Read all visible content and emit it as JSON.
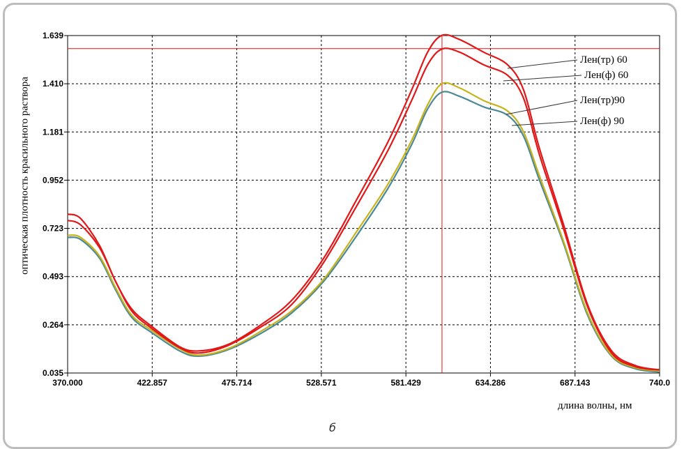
{
  "chart_data": {
    "type": "line",
    "title": "",
    "xlabel": "длина волны, нм",
    "ylabel": "оптическая плотность красильного раствора",
    "xlim": [
      370.0,
      740.0
    ],
    "ylim": [
      0.035,
      1.639
    ],
    "x_ticks": [
      "370.000",
      "422.857",
      "475.714",
      "528.571",
      "581.429",
      "634.286",
      "687.143",
      "740.0"
    ],
    "y_ticks": [
      "0.035",
      "0.264",
      "0.493",
      "0.723",
      "0.952",
      "1.181",
      "1.410",
      "1.639"
    ],
    "grid": true,
    "grid_style": "dashed",
    "cursor": {
      "x": 604.0,
      "y": 1.577,
      "color": "#e01010"
    },
    "x": [
      370,
      378,
      390,
      400,
      410,
      422,
      440,
      452,
      470,
      490,
      510,
      530,
      550,
      570,
      585,
      595,
      604,
      615,
      630,
      645,
      655,
      665,
      680,
      695,
      710,
      725,
      740
    ],
    "series": [
      {
        "name": "Лен(тр) 60",
        "color": "#e01818",
        "values": [
          0.79,
          0.77,
          0.64,
          0.47,
          0.34,
          0.26,
          0.16,
          0.14,
          0.17,
          0.26,
          0.38,
          0.58,
          0.85,
          1.13,
          1.38,
          1.56,
          1.64,
          1.62,
          1.56,
          1.5,
          1.38,
          1.1,
          0.74,
          0.36,
          0.14,
          0.07,
          0.05
        ]
      },
      {
        "name": "Лен(ф) 60",
        "color": "#e01818",
        "values": [
          0.76,
          0.74,
          0.63,
          0.47,
          0.33,
          0.25,
          0.155,
          0.13,
          0.165,
          0.25,
          0.36,
          0.56,
          0.82,
          1.09,
          1.33,
          1.5,
          1.575,
          1.56,
          1.5,
          1.45,
          1.34,
          1.07,
          0.72,
          0.35,
          0.13,
          0.065,
          0.05
        ]
      },
      {
        "name": "Лен(тр)90",
        "color": "#c8b21c",
        "values": [
          0.69,
          0.68,
          0.59,
          0.44,
          0.31,
          0.24,
          0.15,
          0.12,
          0.15,
          0.23,
          0.33,
          0.48,
          0.7,
          0.93,
          1.14,
          1.31,
          1.41,
          1.39,
          1.33,
          1.28,
          1.18,
          0.97,
          0.66,
          0.32,
          0.12,
          0.06,
          0.045
        ]
      },
      {
        "name": "Лен(ф) 90",
        "color": "#4a8a96",
        "values": [
          0.68,
          0.67,
          0.58,
          0.43,
          0.3,
          0.23,
          0.14,
          0.115,
          0.145,
          0.22,
          0.32,
          0.47,
          0.68,
          0.91,
          1.12,
          1.29,
          1.37,
          1.35,
          1.3,
          1.26,
          1.16,
          0.95,
          0.65,
          0.31,
          0.115,
          0.055,
          0.04
        ]
      }
    ]
  },
  "caption": "б"
}
